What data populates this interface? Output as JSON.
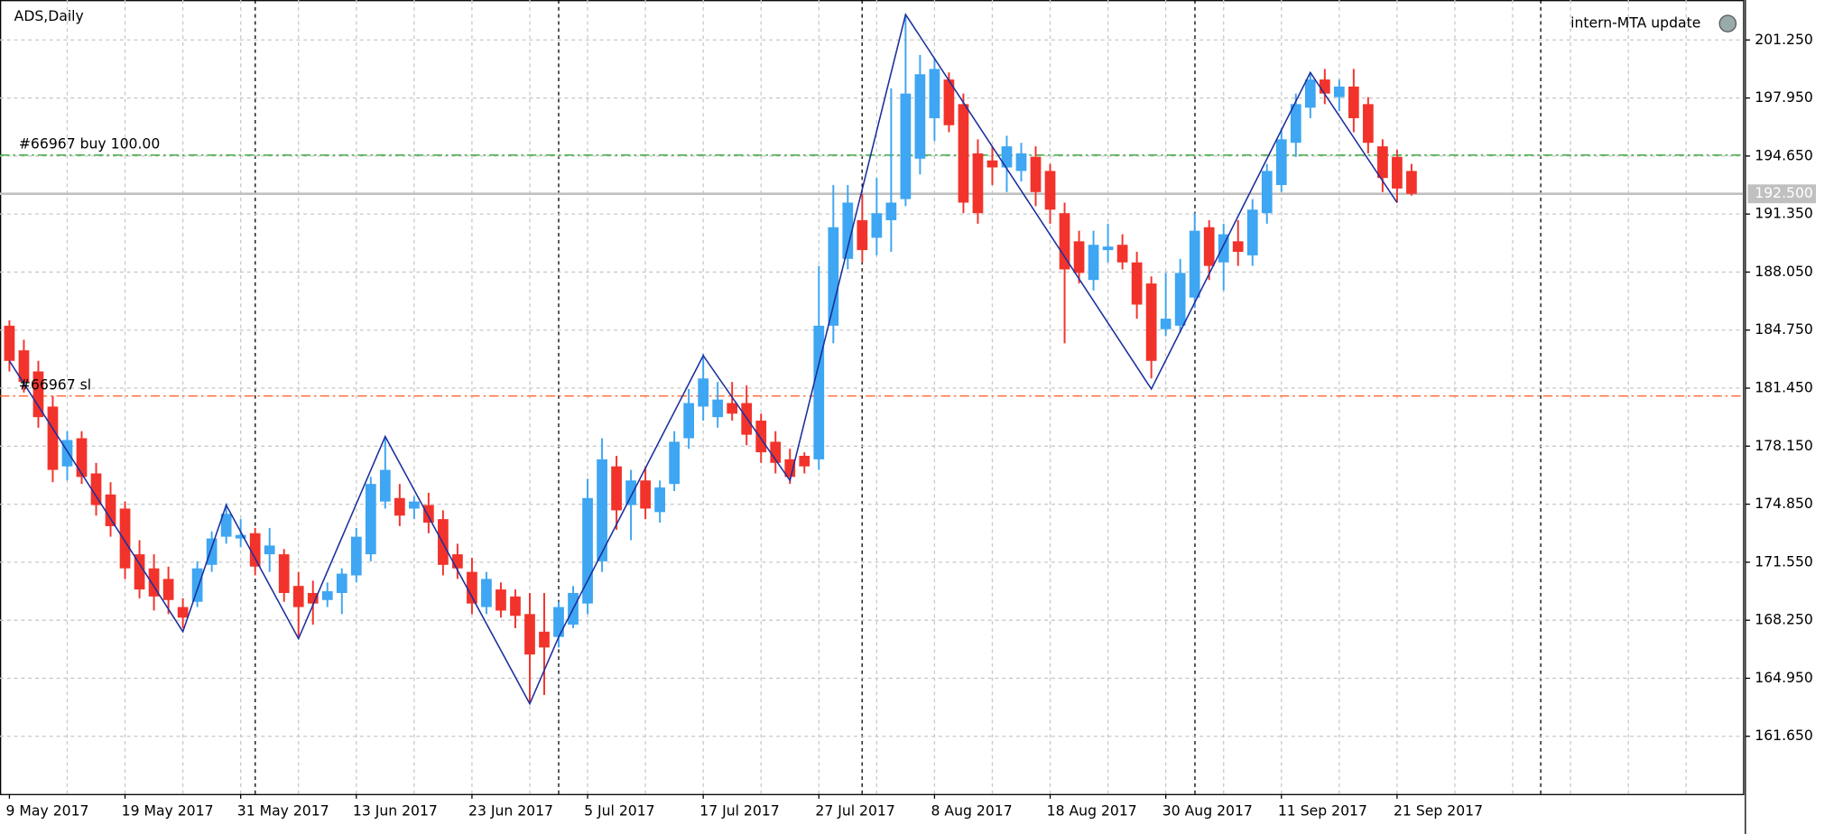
{
  "chart_data": {
    "type": "candlestick",
    "title": "ADS,Daily",
    "indicator_label": "intern-MTA update",
    "categories": [
      "9 May 2017",
      null,
      null,
      null,
      null,
      null,
      null,
      null,
      "19 May 2017",
      null,
      null,
      null,
      null,
      null,
      null,
      null,
      "31 May 2017",
      null,
      null,
      null,
      null,
      null,
      null,
      null,
      "13 Jun 2017",
      null,
      null,
      null,
      null,
      null,
      null,
      null,
      "23 Jun 2017",
      null,
      null,
      null,
      null,
      null,
      null,
      null,
      "5 Jul 2017",
      null,
      null,
      null,
      null,
      null,
      null,
      null,
      "17 Jul 2017",
      null,
      null,
      null,
      null,
      null,
      null,
      null,
      "27 Jul 2017",
      null,
      null,
      null,
      null,
      null,
      null,
      null,
      "8 Aug 2017",
      null,
      null,
      null,
      null,
      null,
      null,
      null,
      "18 Aug 2017",
      null,
      null,
      null,
      null,
      null,
      null,
      null,
      "30 Aug 2017",
      null,
      null,
      null,
      null,
      null,
      null,
      null,
      "11 Sep 2017",
      null,
      null,
      null,
      null,
      null,
      null,
      null,
      "21 Sep 2017",
      null
    ],
    "open": [
      185.0,
      183.6,
      182.4,
      180.4,
      177.0,
      178.6,
      176.6,
      175.4,
      174.6,
      172.0,
      171.2,
      170.6,
      169.0,
      169.3,
      171.4,
      173.0,
      172.9,
      173.2,
      172.0,
      172.0,
      170.2,
      169.8,
      169.4,
      169.8,
      170.8,
      172.0,
      175.0,
      175.2,
      174.6,
      174.8,
      174.0,
      172.0,
      171.0,
      169.0,
      170.0,
      169.6,
      168.6,
      167.6,
      167.3,
      168.0,
      169.2,
      171.6,
      177.0,
      174.8,
      176.2,
      174.4,
      176.0,
      178.6,
      180.4,
      179.8,
      180.6,
      180.6,
      179.6,
      178.4,
      177.4,
      177.6,
      177.4,
      185.0,
      188.8,
      191.0,
      190.0,
      191.0,
      192.2,
      194.5,
      196.8,
      199.0,
      197.6,
      194.8,
      194.4,
      194.0,
      193.8,
      194.6,
      193.8,
      191.4,
      189.8,
      187.6,
      189.3,
      189.6,
      188.6,
      187.4,
      184.8,
      185.0,
      186.6,
      190.6,
      188.6,
      189.8,
      189.0,
      191.4,
      193.0,
      195.4,
      197.4,
      199.0,
      198.0,
      198.6,
      197.6,
      195.2,
      194.6,
      193.8
    ],
    "high": [
      185.3,
      184.2,
      183.0,
      181.0,
      179.0,
      179.0,
      177.2,
      176.1,
      175.0,
      172.8,
      172.0,
      171.3,
      169.5,
      171.6,
      173.3,
      174.9,
      174.0,
      173.5,
      173.5,
      172.3,
      171.0,
      170.5,
      170.4,
      171.2,
      173.5,
      176.4,
      178.6,
      176.0,
      175.3,
      175.5,
      174.5,
      172.6,
      171.8,
      171.0,
      170.4,
      170.0,
      169.8,
      169.8,
      169.3,
      170.2,
      176.3,
      178.6,
      177.6,
      176.8,
      177.0,
      176.2,
      179.0,
      181.4,
      183.4,
      181.8,
      181.8,
      181.6,
      180.0,
      179.0,
      178.0,
      177.8,
      188.4,
      193.0,
      193.0,
      192.5,
      193.4,
      198.5,
      202.7,
      200.4,
      200.2,
      199.4,
      198.2,
      195.6,
      195.2,
      195.8,
      195.4,
      195.2,
      194.2,
      192.0,
      190.4,
      190.4,
      190.8,
      190.2,
      189.2,
      187.8,
      188.0,
      188.8,
      191.4,
      191.0,
      190.8,
      191.0,
      192.2,
      194.2,
      196.2,
      198.2,
      199.4,
      199.6,
      199.0,
      199.6,
      198.0,
      195.6,
      195.0,
      194.2
    ],
    "low": [
      182.4,
      181.2,
      179.2,
      176.1,
      176.2,
      176.0,
      174.2,
      173.0,
      170.6,
      169.5,
      168.8,
      168.6,
      167.8,
      169.0,
      171.0,
      172.6,
      172.4,
      170.8,
      171.0,
      169.3,
      167.2,
      168.0,
      169.0,
      168.6,
      170.4,
      171.6,
      174.6,
      173.6,
      174.0,
      173.2,
      170.8,
      170.6,
      168.6,
      168.6,
      168.4,
      167.8,
      163.5,
      164.0,
      166.7,
      167.8,
      168.6,
      171.0,
      173.4,
      172.8,
      174.0,
      173.8,
      175.6,
      178.0,
      179.6,
      179.2,
      179.6,
      178.2,
      177.2,
      176.6,
      176.0,
      176.6,
      176.8,
      184.0,
      188.2,
      188.6,
      189.0,
      189.2,
      191.8,
      193.6,
      195.5,
      196.0,
      191.4,
      190.8,
      193.0,
      192.6,
      193.2,
      191.8,
      190.8,
      184.0,
      187.4,
      187.0,
      188.6,
      188.2,
      185.4,
      182.0,
      184.4,
      184.6,
      186.0,
      187.6,
      187.0,
      188.4,
      188.4,
      190.8,
      192.6,
      194.6,
      196.8,
      197.6,
      197.2,
      196.0,
      194.8,
      192.6,
      192.0,
      192.4
    ],
    "close": [
      183.0,
      181.8,
      179.8,
      176.8,
      178.5,
      176.4,
      174.8,
      173.6,
      171.2,
      170.0,
      169.6,
      169.4,
      168.4,
      171.2,
      172.9,
      174.3,
      173.1,
      171.3,
      172.5,
      169.8,
      169.0,
      169.2,
      169.9,
      170.9,
      173.0,
      176.0,
      176.8,
      174.2,
      175.0,
      173.8,
      171.4,
      171.2,
      169.2,
      170.6,
      168.8,
      168.5,
      166.3,
      166.7,
      169.0,
      169.8,
      175.2,
      177.4,
      174.5,
      176.2,
      174.6,
      175.8,
      178.4,
      180.6,
      182.0,
      180.8,
      180.0,
      178.8,
      177.8,
      177.2,
      176.4,
      177.0,
      185.0,
      190.6,
      192.0,
      189.3,
      191.4,
      192.0,
      198.2,
      199.3,
      199.6,
      196.4,
      192.0,
      191.4,
      194.0,
      195.2,
      194.8,
      192.6,
      191.6,
      188.2,
      188.0,
      189.6,
      189.5,
      188.6,
      186.2,
      183.0,
      185.4,
      188.0,
      190.4,
      188.4,
      190.2,
      189.2,
      191.6,
      193.8,
      195.6,
      197.6,
      199.0,
      198.2,
      198.6,
      196.8,
      195.4,
      193.4,
      192.8,
      192.5
    ],
    "up_color": "#3ea6f2",
    "down_color": "#f2332b",
    "ylim": [
      158.37,
      203.52
    ],
    "yticks": [
      {
        "value": 201.25,
        "label": "201.250"
      },
      {
        "value": 197.95,
        "label": "197.950"
      },
      {
        "value": 194.65,
        "label": "194.650"
      },
      {
        "value": 191.35,
        "label": "191.350"
      },
      {
        "value": 188.05,
        "label": "188.050"
      },
      {
        "value": 184.75,
        "label": "184.750"
      },
      {
        "value": 181.45,
        "label": "181.450"
      },
      {
        "value": 178.15,
        "label": "178.150"
      },
      {
        "value": 174.85,
        "label": "174.850"
      },
      {
        "value": 171.55,
        "label": "171.550"
      },
      {
        "value": 168.25,
        "label": "168.250"
      },
      {
        "value": 164.95,
        "label": "164.950"
      },
      {
        "value": 161.65,
        "label": "161.650"
      }
    ],
    "grid": true,
    "price": {
      "value": 192.5,
      "label": "192.500",
      "color": "#c0c0c0"
    },
    "levels": [
      {
        "label": "#66967 buy 100.00",
        "value": 194.7,
        "color": "#1a9a1a"
      },
      {
        "label": "#66967 sl",
        "value": 181.0,
        "color": "#ff5a1f"
      }
    ],
    "zigzag": {
      "color": "#1c2f9c",
      "x": [
        0,
        12,
        15,
        20,
        26,
        36,
        38,
        48,
        54,
        62,
        79,
        90,
        96
      ],
      "values": [
        183.0,
        167.6,
        174.8,
        167.2,
        178.7,
        163.5,
        167.3,
        183.3,
        176.2,
        202.7,
        181.4,
        199.4,
        192.0
      ]
    }
  }
}
